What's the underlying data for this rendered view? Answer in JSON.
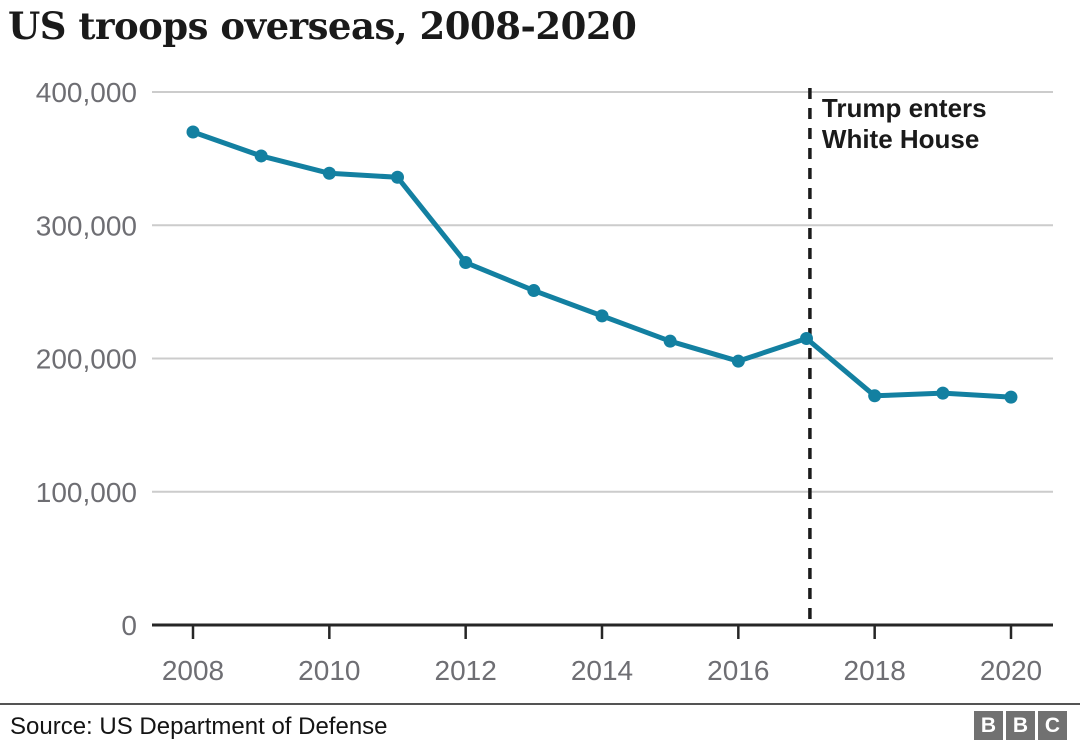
{
  "title": "US troops overseas, 2008-2020",
  "chart_data": {
    "type": "line",
    "title": "US troops overseas, 2008-2020",
    "x": [
      2008,
      2009,
      2010,
      2011,
      2012,
      2013,
      2014,
      2015,
      2016,
      2017,
      2018,
      2019,
      2020
    ],
    "values": [
      370000,
      352000,
      339000,
      336000,
      272000,
      251000,
      232000,
      213000,
      198000,
      215000,
      172000,
      174000,
      171000
    ],
    "series_name": "US troops overseas",
    "ylim": [
      0,
      400000
    ],
    "yticks": [
      {
        "value": 0,
        "label": "0"
      },
      {
        "value": 100000,
        "label": "100,000"
      },
      {
        "value": 200000,
        "label": "200,000"
      },
      {
        "value": 300000,
        "label": "300,000"
      },
      {
        "value": 400000,
        "label": "400,000"
      }
    ],
    "xtick_years": [
      2008,
      2010,
      2012,
      2014,
      2016,
      2018,
      2020
    ],
    "grid": "horizontal",
    "legend": "none",
    "line_color": "#1380A1",
    "annotation": {
      "lines": [
        "Trump enters",
        "White House"
      ],
      "x_year": 2017.05,
      "style": "dashed-vertical-line",
      "color": "#1a1a1a"
    }
  },
  "colors": {
    "grid": "#cccccc",
    "axis": "#262626",
    "tick_label": "#6e6e73",
    "logo_bg": "#717171"
  },
  "footer": {
    "source": "Source: US Department of Defense",
    "logo_letters": [
      "B",
      "B",
      "C"
    ]
  }
}
